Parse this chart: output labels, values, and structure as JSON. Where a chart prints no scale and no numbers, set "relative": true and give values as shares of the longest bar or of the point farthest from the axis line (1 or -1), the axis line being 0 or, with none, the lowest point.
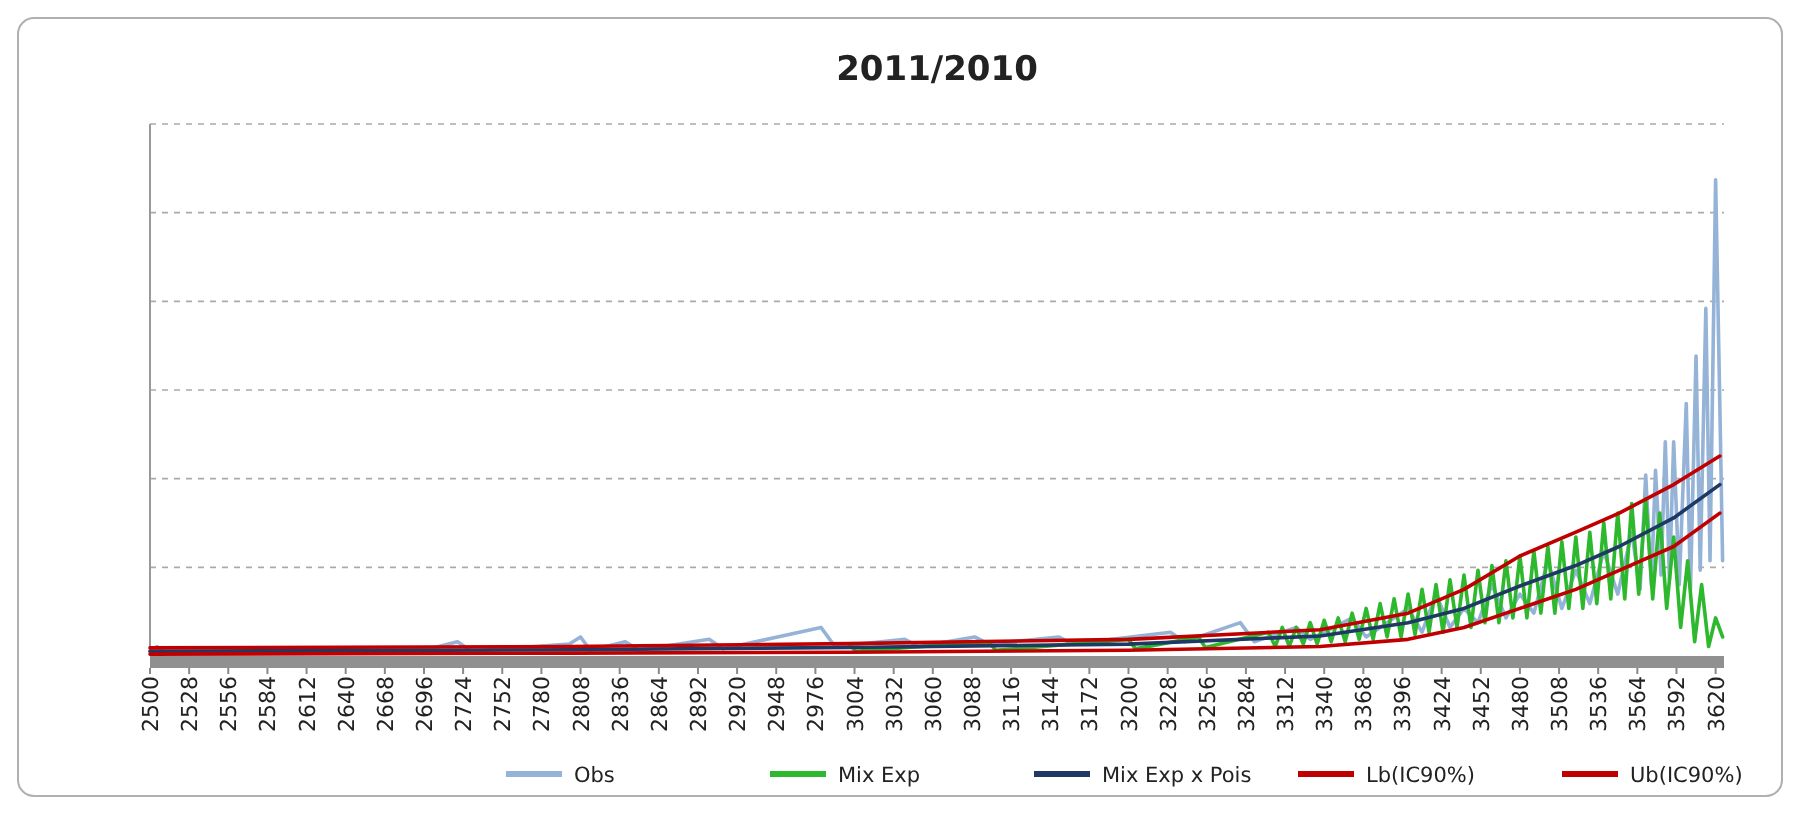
{
  "chart_data": {
    "type": "line",
    "title": "2011/2010",
    "relative": true,
    "grid": "y",
    "legend": "bottom",
    "marker": "none",
    "line_style": "solid",
    "xlim": [
      2500,
      3626
    ],
    "xticks": [
      2500,
      2528,
      2556,
      2584,
      2612,
      2640,
      2668,
      2696,
      2724,
      2752,
      2780,
      2808,
      2836,
      2864,
      2892,
      2920,
      2948,
      2976,
      3004,
      3032,
      3060,
      3088,
      3116,
      3144,
      3172,
      3200,
      3228,
      3256,
      3284,
      3312,
      3340,
      3368,
      3396,
      3424,
      3452,
      3480,
      3508,
      3536,
      3564,
      3592,
      3620
    ],
    "series": [
      {
        "name": "Obs",
        "color": "#95b3d7",
        "x": [
          2500,
          2505,
          2510,
          2600,
          2700,
          2720,
          2730,
          2800,
          2808,
          2815,
          2840,
          2850,
          2900,
          2910,
          2980,
          2990,
          3040,
          3050,
          3090,
          3100,
          3150,
          3160,
          3230,
          3240,
          3280,
          3290,
          3320,
          3330,
          3360,
          3370,
          3400,
          3410,
          3420,
          3430,
          3440,
          3450,
          3460,
          3470,
          3480,
          3490,
          3500,
          3510,
          3520,
          3530,
          3540,
          3550,
          3560,
          3566,
          3570,
          3574,
          3577,
          3581,
          3584,
          3587,
          3590,
          3594,
          3599,
          3602,
          3606,
          3609,
          3613,
          3616,
          3620,
          3623,
          3625
        ],
        "values": [
          0.01,
          0.02,
          0.008,
          0.012,
          0.015,
          0.03,
          0.01,
          0.025,
          0.04,
          0.012,
          0.03,
          0.012,
          0.035,
          0.015,
          0.06,
          0.02,
          0.035,
          0.02,
          0.04,
          0.025,
          0.04,
          0.025,
          0.05,
          0.03,
          0.07,
          0.03,
          0.06,
          0.035,
          0.08,
          0.04,
          0.1,
          0.05,
          0.13,
          0.06,
          0.1,
          0.07,
          0.15,
          0.08,
          0.13,
          0.09,
          0.2,
          0.1,
          0.18,
          0.11,
          0.22,
          0.13,
          0.26,
          0.14,
          0.38,
          0.15,
          0.39,
          0.17,
          0.45,
          0.16,
          0.45,
          0.15,
          0.53,
          0.14,
          0.63,
          0.18,
          0.73,
          0.2,
          1.0,
          0.53,
          0.2
        ]
      },
      {
        "name": "Mix Exp",
        "color": "#2db82d",
        "x": [
          3000,
          3005,
          3100,
          3105,
          3200,
          3205,
          3250,
          3255,
          3300,
          3305,
          3310,
          3315,
          3320,
          3325,
          3330,
          3335,
          3340,
          3345,
          3350,
          3355,
          3360,
          3365,
          3370,
          3375,
          3380,
          3385,
          3390,
          3395,
          3400,
          3405,
          3410,
          3415,
          3420,
          3425,
          3430,
          3435,
          3440,
          3445,
          3450,
          3455,
          3460,
          3465,
          3470,
          3475,
          3480,
          3485,
          3490,
          3495,
          3500,
          3505,
          3510,
          3515,
          3520,
          3525,
          3530,
          3535,
          3540,
          3545,
          3550,
          3555,
          3560,
          3565,
          3570,
          3575,
          3580,
          3585,
          3590,
          3595,
          3600,
          3605,
          3610,
          3615,
          3620,
          3625
        ],
        "values": [
          0.025,
          0.01,
          0.03,
          0.012,
          0.035,
          0.015,
          0.04,
          0.018,
          0.05,
          0.02,
          0.06,
          0.02,
          0.06,
          0.025,
          0.07,
          0.025,
          0.075,
          0.03,
          0.08,
          0.03,
          0.09,
          0.035,
          0.1,
          0.035,
          0.11,
          0.04,
          0.12,
          0.04,
          0.13,
          0.045,
          0.14,
          0.05,
          0.15,
          0.05,
          0.16,
          0.06,
          0.17,
          0.06,
          0.18,
          0.07,
          0.19,
          0.07,
          0.2,
          0.08,
          0.21,
          0.08,
          0.22,
          0.09,
          0.23,
          0.09,
          0.24,
          0.1,
          0.25,
          0.1,
          0.26,
          0.11,
          0.28,
          0.12,
          0.3,
          0.12,
          0.32,
          0.13,
          0.33,
          0.12,
          0.3,
          0.1,
          0.25,
          0.06,
          0.2,
          0.03,
          0.15,
          0.02,
          0.08,
          0.04
        ]
      },
      {
        "name": "Mix Exp x Pois",
        "color": "#1f3864",
        "x": [
          2500,
          2800,
          3000,
          3200,
          3337,
          3400,
          3440,
          3480,
          3520,
          3551,
          3590,
          3623
        ],
        "values": [
          0.01,
          0.013,
          0.018,
          0.025,
          0.042,
          0.07,
          0.1,
          0.147,
          0.19,
          0.23,
          0.29,
          0.36
        ]
      },
      {
        "name": "Lb(IC90%)",
        "color": "#c00000",
        "x": [
          2500,
          2800,
          3000,
          3200,
          3337,
          3400,
          3440,
          3480,
          3520,
          3551,
          3590,
          3623
        ],
        "values": [
          0.004,
          0.006,
          0.008,
          0.012,
          0.02,
          0.035,
          0.06,
          0.1,
          0.14,
          0.18,
          0.23,
          0.3
        ]
      },
      {
        "name": "Ub(IC90%)",
        "color": "#c00000",
        "x": [
          2500,
          2800,
          3000,
          3200,
          3337,
          3400,
          3440,
          3480,
          3520,
          3551,
          3590,
          3623
        ],
        "values": [
          0.017,
          0.02,
          0.026,
          0.035,
          0.055,
          0.09,
          0.14,
          0.21,
          0.26,
          0.3,
          0.36,
          0.42
        ]
      }
    ]
  }
}
